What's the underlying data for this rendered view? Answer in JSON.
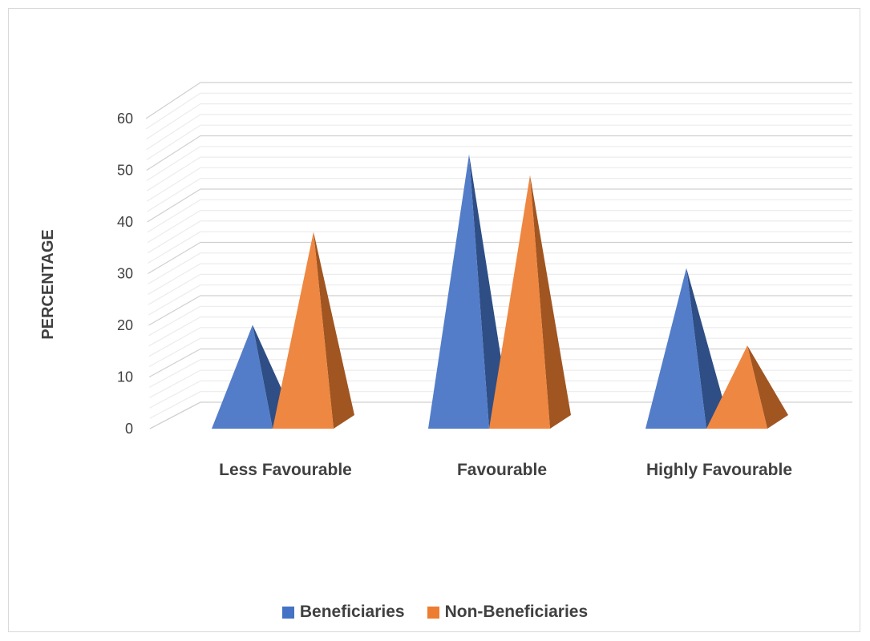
{
  "chart_data": {
    "type": "bar",
    "title": "",
    "xlabel": "",
    "ylabel": "PERCENTAGE",
    "categories": [
      "Less Favourable",
      "Favourable",
      "Highly Favourable"
    ],
    "series": [
      {
        "name": "Beneficiaries",
        "values": [
          20,
          53,
          31
        ],
        "color": "#4472C4"
      },
      {
        "name": "Non-Beneficiaries",
        "values": [
          38,
          49,
          16
        ],
        "color": "#ED7D31"
      }
    ],
    "ylim": [
      0,
      60
    ],
    "yticks": [
      "0",
      "10",
      "20",
      "30",
      "40",
      "50",
      "60"
    ],
    "grid": true,
    "legend_position": "bottom"
  }
}
